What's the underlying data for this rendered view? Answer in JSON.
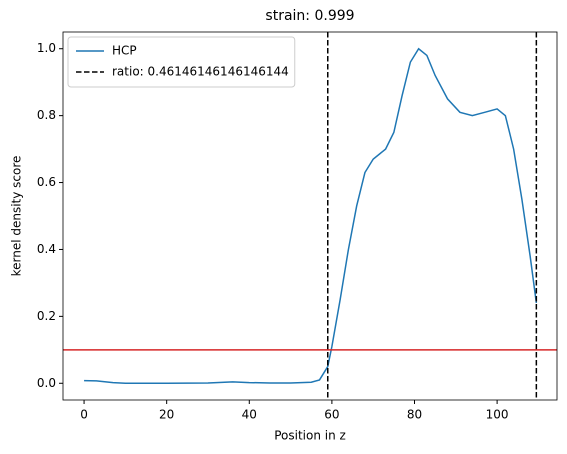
{
  "chart_data": {
    "type": "line",
    "title": "strain: 0.999",
    "x_label": "Position in z",
    "y_label": "kernel density score",
    "x": [
      0,
      3,
      7,
      10,
      20,
      30,
      36,
      40,
      45,
      50,
      55,
      57,
      59,
      60,
      62,
      64,
      66,
      68,
      70,
      73,
      75,
      77,
      79,
      81,
      83,
      85,
      88,
      91,
      94,
      97,
      100,
      102,
      104,
      106,
      108,
      109.5
    ],
    "series": [
      {
        "name": "HCP",
        "color": "#1f77b4",
        "values": [
          0.008,
          0.007,
          0.002,
          0.0,
          0.0,
          0.001,
          0.004,
          0.002,
          0.001,
          0.001,
          0.003,
          0.01,
          0.05,
          0.11,
          0.25,
          0.4,
          0.53,
          0.63,
          0.67,
          0.7,
          0.75,
          0.86,
          0.96,
          1.0,
          0.98,
          0.92,
          0.85,
          0.81,
          0.8,
          0.81,
          0.82,
          0.8,
          0.7,
          0.55,
          0.38,
          0.24
        ]
      }
    ],
    "vlines": {
      "name": "ratio: 0.46146146146146144",
      "color": "#000000",
      "values": [
        59,
        109.5
      ]
    },
    "hline": {
      "value": 0.1,
      "color": "#d62728"
    },
    "xlim": [
      -5.1,
      114.5
    ],
    "xticks": [
      0,
      20,
      40,
      60,
      80,
      100
    ],
    "ylim": [
      -0.05,
      1.05
    ],
    "yticks": [
      {
        "value": 0,
        "label": "0.0"
      },
      0.2,
      0.4,
      0.6,
      0.8,
      {
        "value": 1,
        "label": "1.0"
      }
    ],
    "legend": "upper left"
  }
}
